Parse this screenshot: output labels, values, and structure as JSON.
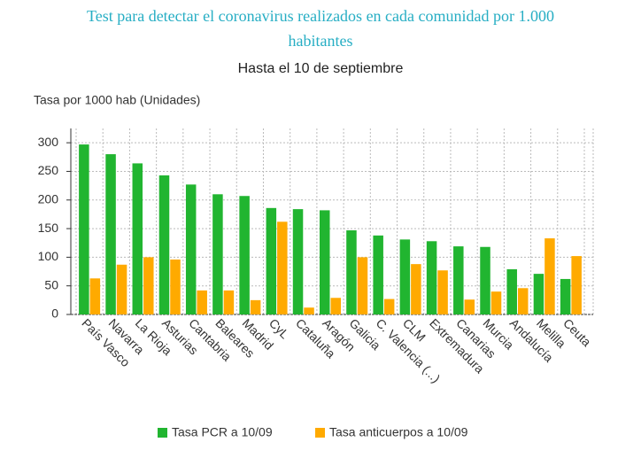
{
  "chart_data": {
    "type": "bar",
    "title": "Test para detectar el coronavirus realizados en cada comunidad por 1.000 habitantes",
    "subtitle": "Hasta el 10 de septiembre",
    "y_label": "Tasa por 1000 hab (Unidades)",
    "categories": [
      "País Vasco",
      "Navarra",
      "La Rioja",
      "Asturias",
      "Cantabria",
      "Baleares",
      "Madrid",
      "CyL",
      "Cataluña",
      "Aragón",
      "Galicia",
      "C. Valencia (...)",
      "CLM",
      "Extremadura",
      "Canarias",
      "Murcia",
      "Andalucía",
      "Melilla",
      "Ceuta"
    ],
    "series": [
      {
        "name": "Tasa PCR a 10/09",
        "color": "#21b530",
        "values": [
          297,
          280,
          264,
          243,
          227,
          210,
          207,
          186,
          184,
          182,
          147,
          138,
          131,
          128,
          119,
          118,
          79,
          71,
          62
        ]
      },
      {
        "name": "Tasa anticuerpos a 10/09",
        "color": "#ffaa00",
        "values": [
          63,
          87,
          100,
          96,
          42,
          42,
          25,
          162,
          12,
          29,
          100,
          27,
          88,
          77,
          26,
          40,
          46,
          133,
          102
        ]
      }
    ],
    "ylim": [
      0,
      325
    ],
    "yticks": [
      0,
      50,
      100,
      150,
      200,
      250,
      300
    ],
    "grid": true,
    "legend": "bottom"
  }
}
